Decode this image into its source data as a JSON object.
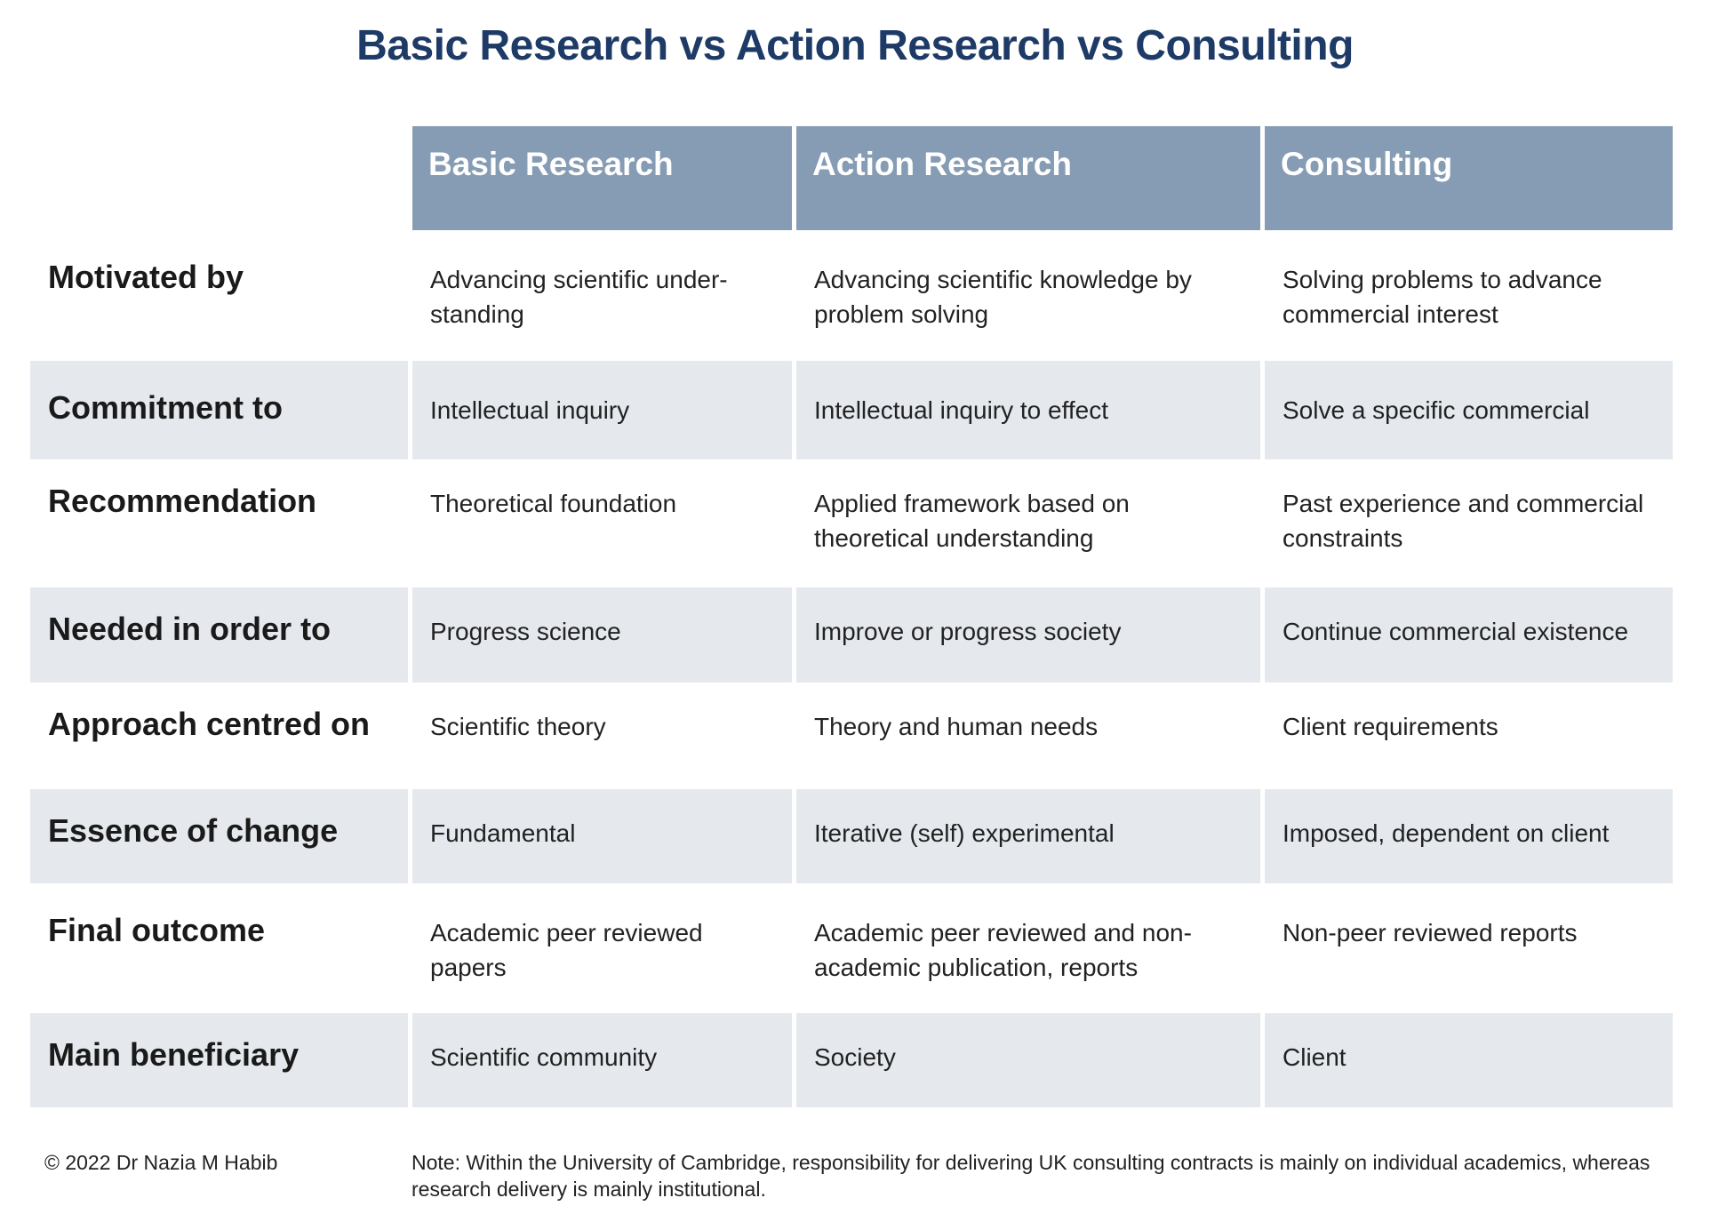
{
  "title": "Basic Research vs Action Research vs Consulting",
  "columns": [
    "Basic Research",
    "Action Research",
    "Consulting"
  ],
  "rows": [
    {
      "label": "Motivated by",
      "cells": [
        "Advancing scientific under-standing",
        "Advancing scientific knowledge by problem solving",
        "Solving problems to advance commercial interest"
      ]
    },
    {
      "label": "Commitment to",
      "cells": [
        "Intellectual inquiry",
        "Intellectual inquiry to effect",
        "Solve a specific commercial"
      ]
    },
    {
      "label": "Recommendation",
      "cells": [
        "Theoretical foundation",
        "Applied framework based on theoretical understanding",
        "Past experience and commercial constraints"
      ]
    },
    {
      "label": "Needed in order to",
      "cells": [
        "Progress science",
        "Improve or progress society",
        "Continue commercial existence"
      ]
    },
    {
      "label": "Approach centred on",
      "cells": [
        "Scientific theory",
        "Theory and human needs",
        "Client requirements"
      ]
    },
    {
      "label": "Essence of change",
      "cells": [
        "Fundamental",
        "Iterative (self) experimental",
        "Imposed, dependent on client"
      ]
    },
    {
      "label": "Final outcome",
      "cells": [
        "Academic peer reviewed papers",
        "Academic peer reviewed and non-academic publication, reports",
        "Non-peer reviewed reports"
      ]
    },
    {
      "label": "Main beneficiary",
      "cells": [
        "Scientific community",
        "Society",
        "Client"
      ]
    }
  ],
  "footer": {
    "copyright": "© 2022 Dr Nazia M Habib",
    "note": "Note: Within the University of Cambridge, responsibility for delivering UK consulting contracts is mainly on individual academics, whereas research delivery is mainly institutional."
  },
  "colors": {
    "title": "#1e3a66",
    "header_bg": "#869cb4",
    "row_shade": "#e5e9ee"
  }
}
